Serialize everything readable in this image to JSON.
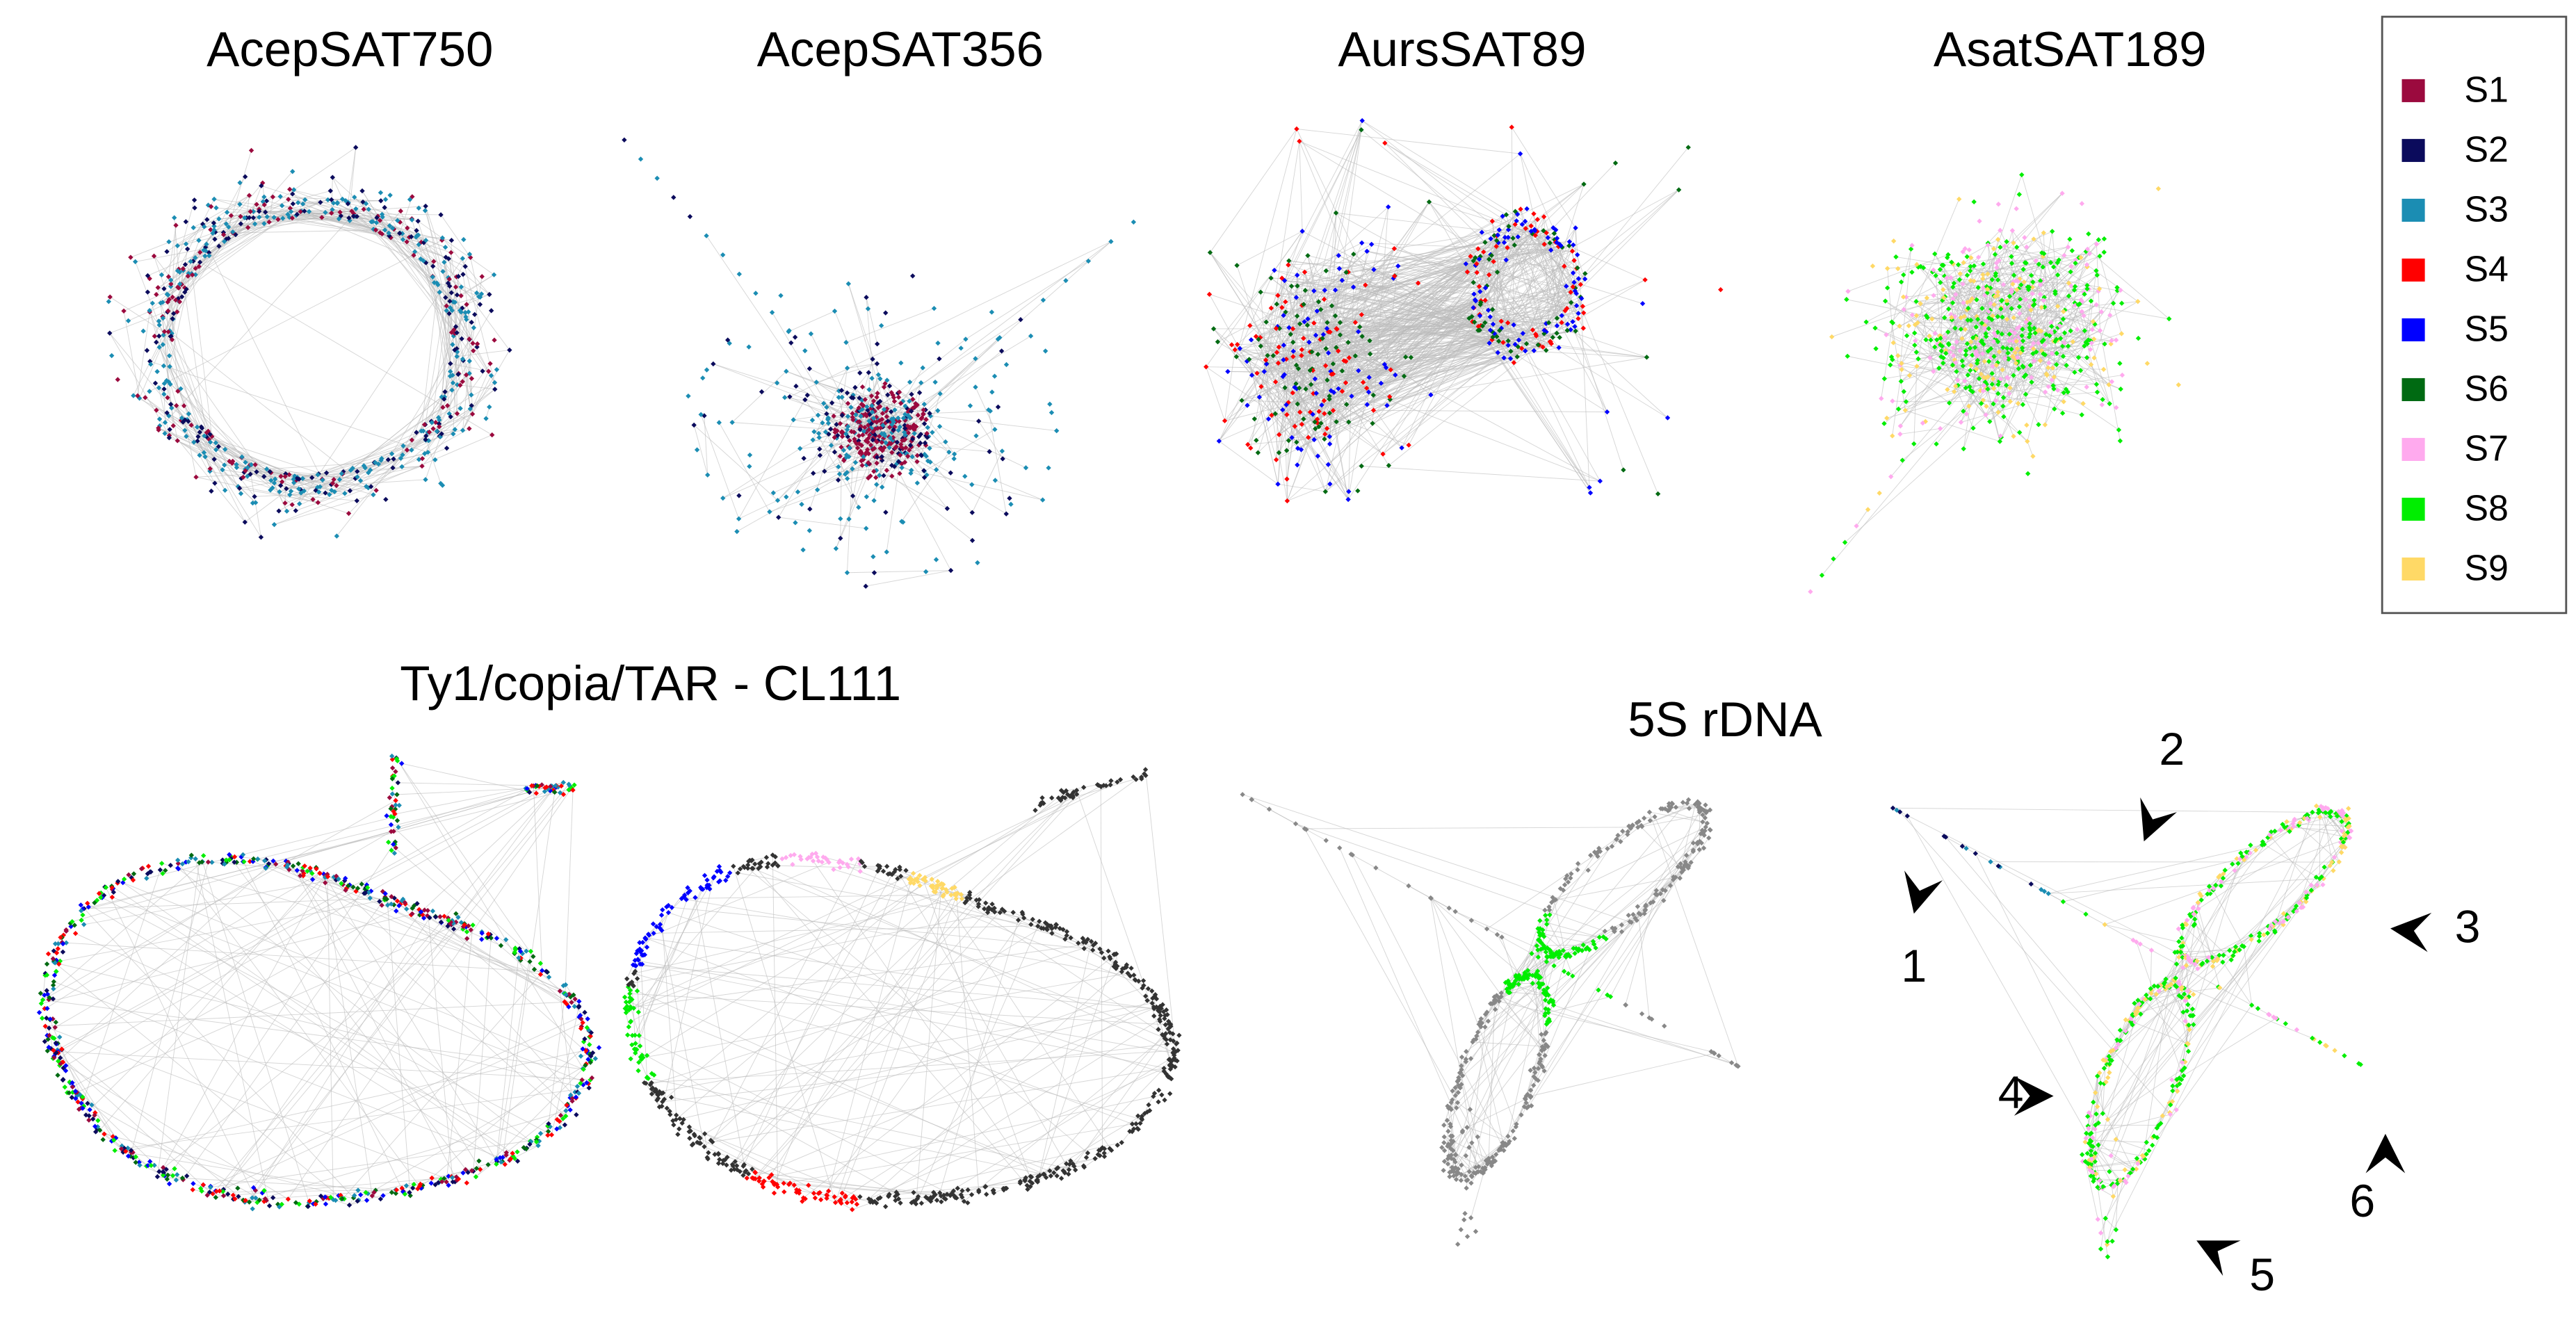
{
  "panels": {
    "top": [
      "AcepSAT750",
      "AcepSAT356",
      "AursSAT89",
      "AsatSAT189"
    ],
    "ty1_title": "Ty1/copia/TAR - CL111",
    "rdna_title": "5S rDNA"
  },
  "legend": {
    "items": [
      {
        "label": "S1",
        "color": "#9b0a3e"
      },
      {
        "label": "S2",
        "color": "#0b0b5c"
      },
      {
        "label": "S3",
        "color": "#1b8db3"
      },
      {
        "label": "S4",
        "color": "#ff0000"
      },
      {
        "label": "S5",
        "color": "#0000ff"
      },
      {
        "label": "S6",
        "color": "#006a12"
      },
      {
        "label": "S7",
        "color": "#ffaaee"
      },
      {
        "label": "S8",
        "color": "#00ee00"
      },
      {
        "label": "S9",
        "color": "#ffd966"
      }
    ]
  },
  "arrows": [
    "1",
    "2",
    "3",
    "4",
    "5",
    "6"
  ]
}
